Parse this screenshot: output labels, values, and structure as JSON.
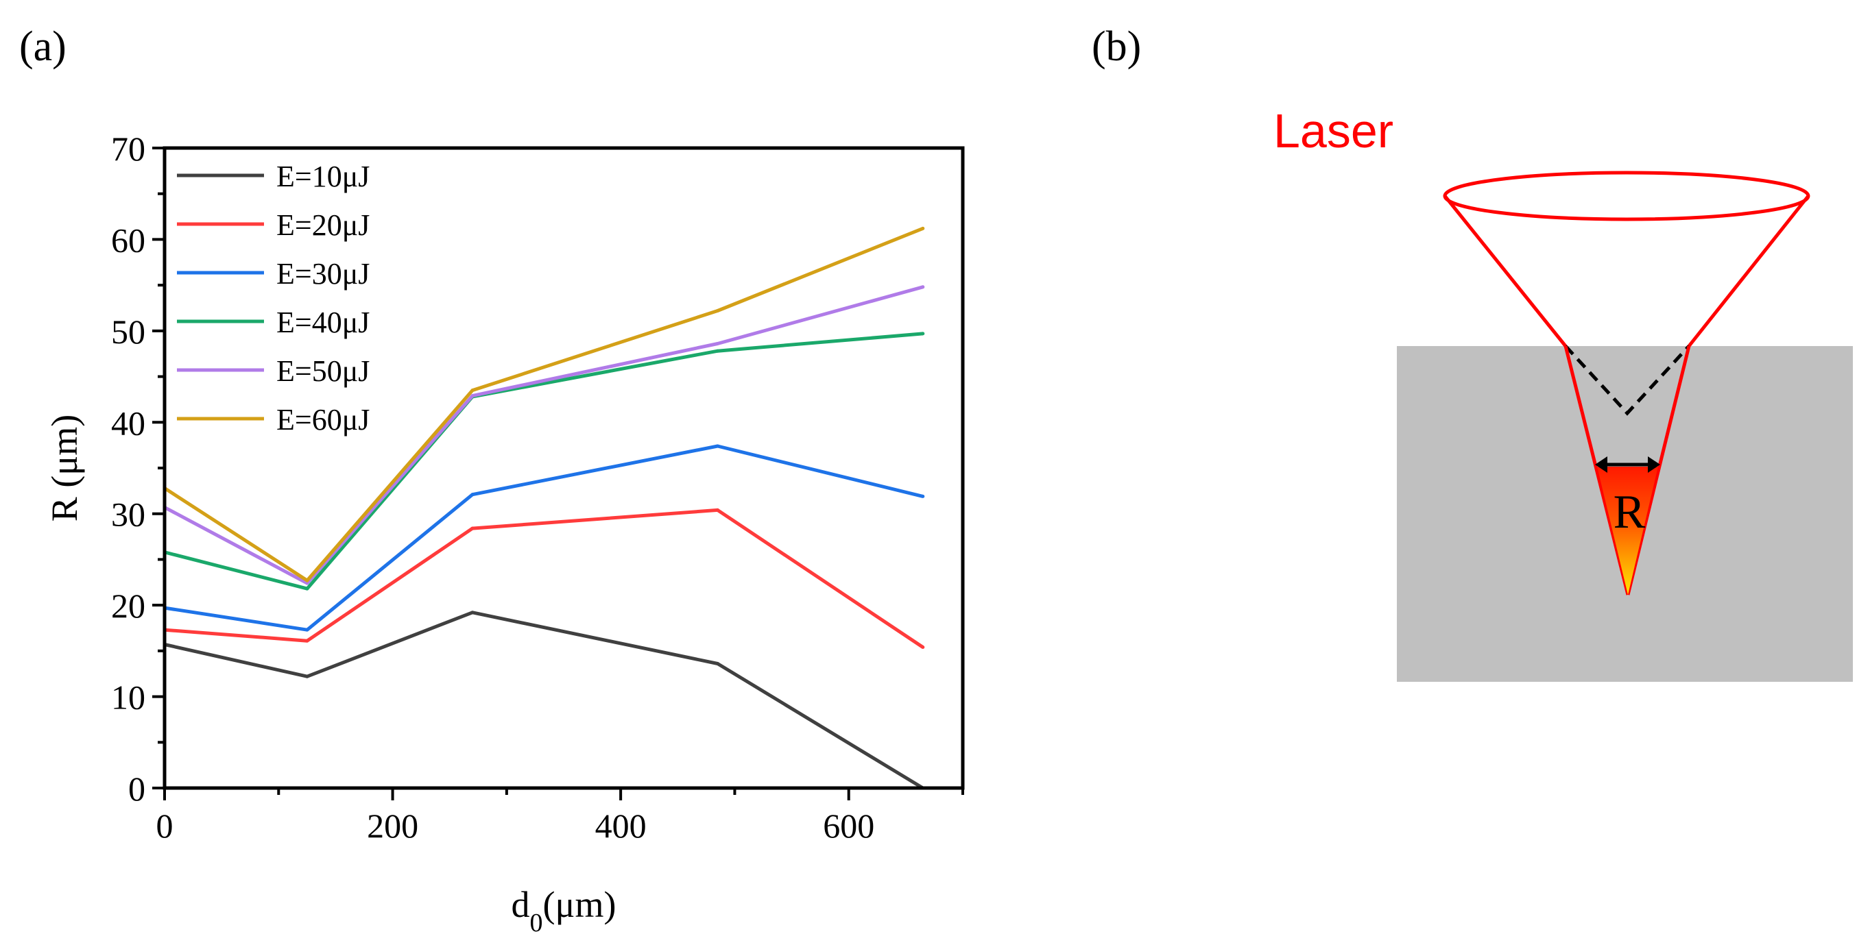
{
  "panel_a": {
    "label": "(a)"
  },
  "panel_b": {
    "label": "(b)",
    "laser_label": "Laser",
    "r_label": "R",
    "colors": {
      "laser": "#ff0000",
      "material": "#c0c0c0",
      "dashed": "#000000"
    }
  },
  "chart_data": {
    "type": "line",
    "title": "",
    "xlabel_main": "d",
    "xlabel_sub": "0",
    "xlabel_unit": "(μm)",
    "ylabel": "R (μm)",
    "xlim": [
      0,
      700
    ],
    "ylim": [
      0,
      70
    ],
    "xticks": [
      0,
      200,
      400,
      600
    ],
    "yticks": [
      0,
      10,
      20,
      30,
      40,
      50,
      60,
      70
    ],
    "grid": false,
    "legend_position": "top-left",
    "x": [
      0,
      125,
      270,
      485,
      665
    ],
    "series": [
      {
        "name": "E=10μJ",
        "color": "#404040",
        "values": [
          15.7,
          12.2,
          19.2,
          13.6,
          0
        ]
      },
      {
        "name": "E=20μJ",
        "color": "#ff3b3b",
        "values": [
          17.3,
          16.1,
          28.4,
          30.4,
          15.4
        ]
      },
      {
        "name": "E=30μJ",
        "color": "#1e73e8",
        "values": [
          19.7,
          17.3,
          32.1,
          37.4,
          31.9
        ]
      },
      {
        "name": "E=40μJ",
        "color": "#1aa86a",
        "values": [
          25.8,
          21.8,
          42.8,
          47.8,
          49.7
        ]
      },
      {
        "name": "E=50μJ",
        "color": "#b07be8",
        "values": [
          30.7,
          22.4,
          42.9,
          48.6,
          54.8
        ]
      },
      {
        "name": "E=60μJ",
        "color": "#d4a017",
        "values": [
          32.8,
          22.7,
          43.5,
          52.2,
          61.2
        ]
      }
    ]
  }
}
